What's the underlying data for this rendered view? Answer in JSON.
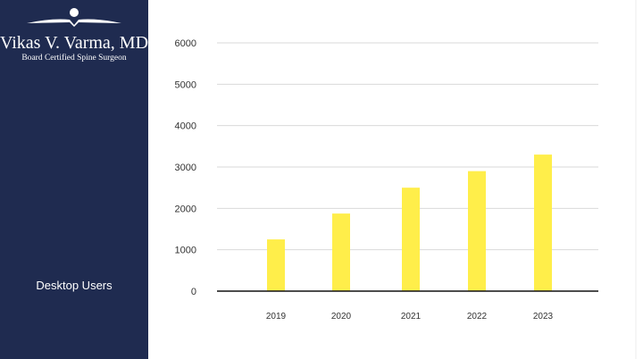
{
  "sidebar": {
    "logo_name": "Vikas V. Varma, MD",
    "logo_subtitle": "Board Certified Spine Surgeon",
    "series_label": "Desktop Users"
  },
  "colors": {
    "sidebar": "#1f2b50",
    "bar": "#ffee4a",
    "grid": "#d9d9d9"
  },
  "chart_data": {
    "type": "bar",
    "title": "",
    "xlabel": "",
    "ylabel": "",
    "categories": [
      "2019",
      "2020",
      "2021",
      "2022",
      "2023"
    ],
    "series": [
      {
        "name": "Desktop Users",
        "values": [
          1250,
          1875,
          2500,
          2900,
          3300
        ]
      }
    ],
    "ylim": [
      0,
      6000
    ],
    "yticks": [
      0,
      1000,
      2000,
      3000,
      4000,
      5000,
      6000
    ],
    "grid": true,
    "legend": "left"
  }
}
